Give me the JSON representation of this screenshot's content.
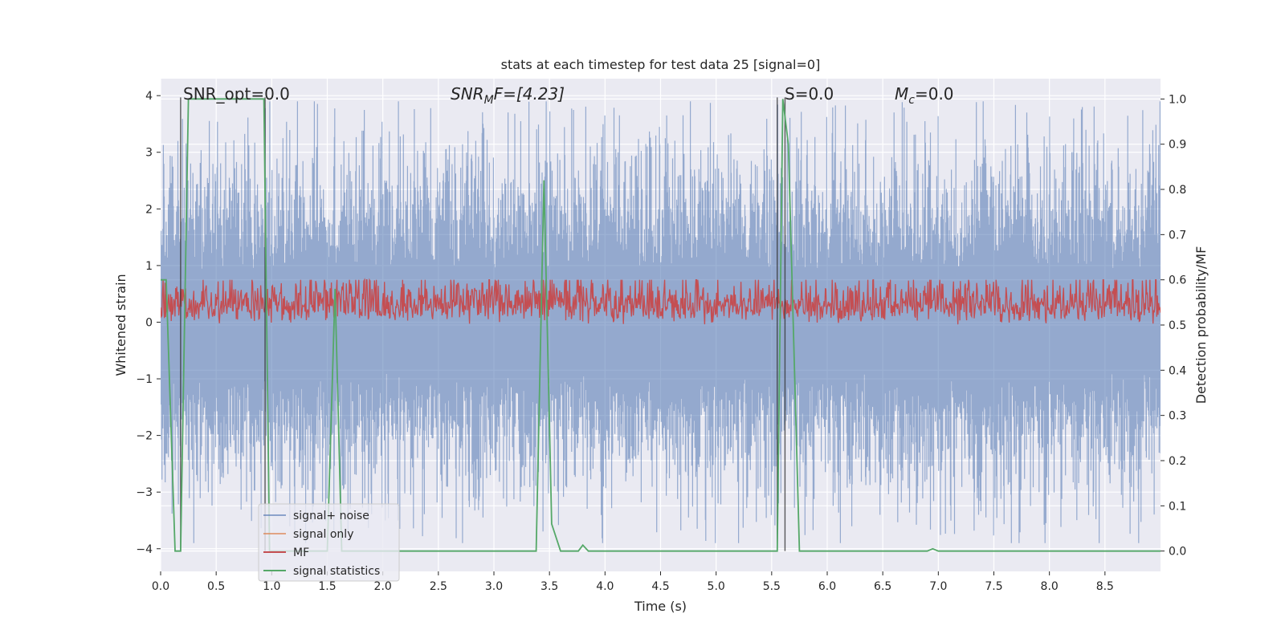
{
  "chart_data": {
    "type": "line",
    "title": "stats at each timestep for test data 25 [signal=0]",
    "xlabel": "Time (s)",
    "ylabel": "Whitened strain",
    "y2label": "Detection probability/MF",
    "xlim": [
      0.0,
      9.0
    ],
    "ylim": [
      -4.4,
      4.3
    ],
    "y2lim": [
      -0.045,
      1.045
    ],
    "x_ticks": [
      "0.0",
      "0.5",
      "1.0",
      "1.5",
      "2.0",
      "2.5",
      "3.0",
      "3.5",
      "4.0",
      "4.5",
      "5.0",
      "5.5",
      "6.0",
      "6.5",
      "7.0",
      "7.5",
      "8.0",
      "8.5"
    ],
    "x_tick_values": [
      0.0,
      0.5,
      1.0,
      1.5,
      2.0,
      2.5,
      3.0,
      3.5,
      4.0,
      4.5,
      5.0,
      5.5,
      6.0,
      6.5,
      7.0,
      7.5,
      8.0,
      8.5
    ],
    "y_ticks": [
      "−4",
      "−3",
      "−2",
      "−1",
      "0",
      "1",
      "2",
      "3",
      "4"
    ],
    "y_tick_values": [
      -4,
      -3,
      -2,
      -1,
      0,
      1,
      2,
      3,
      4
    ],
    "y2_ticks": [
      "0.0",
      "0.1",
      "0.2",
      "0.3",
      "0.4",
      "0.5",
      "0.6",
      "0.7",
      "0.8",
      "0.9",
      "1.0"
    ],
    "y2_tick_values": [
      0.0,
      0.1,
      0.2,
      0.3,
      0.4,
      0.5,
      0.6,
      0.7,
      0.8,
      0.9,
      1.0
    ],
    "grid": true,
    "legend_position": "lower-left",
    "annotations": {
      "snr_opt": "SNR_opt=0.0",
      "snr_mf_base": "SNR",
      "snr_mf_sub": "M",
      "snr_mf_rest": "F=[4.23]",
      "s_label": "S=0.0",
      "mc_base": "M",
      "mc_sub": "c",
      "mc_rest": "=0.0"
    },
    "series": [
      {
        "name": "signal+ noise",
        "color": "#4c72b0",
        "opacity": 0.5,
        "description": "whitened noise, amplitude mostly within ±2.5 with spikes to ±3.9",
        "envelope": {
          "typical_abs": 2.2,
          "peak_abs": 3.9
        }
      },
      {
        "name": "signal only",
        "color": "#dd8452",
        "values": []
      },
      {
        "name": "MF",
        "color": "#c44e52",
        "axis": "y2",
        "band": [
          0.5,
          0.6
        ]
      },
      {
        "name": "signal statistics",
        "color": "#55a868",
        "axis": "y2",
        "points": [
          [
            0.0,
            0.6
          ],
          [
            0.05,
            0.6
          ],
          [
            0.13,
            0.0
          ],
          [
            0.18,
            0.0
          ],
          [
            0.25,
            1.0
          ],
          [
            0.93,
            1.0
          ],
          [
            0.98,
            0.0
          ],
          [
            1.5,
            0.0
          ],
          [
            1.57,
            0.58
          ],
          [
            1.63,
            0.0
          ],
          [
            3.38,
            0.0
          ],
          [
            3.45,
            0.82
          ],
          [
            3.52,
            0.06
          ],
          [
            3.6,
            0.0
          ],
          [
            3.76,
            0.0
          ],
          [
            3.8,
            0.013
          ],
          [
            3.85,
            0.0
          ],
          [
            5.55,
            0.0
          ],
          [
            5.6,
            1.0
          ],
          [
            5.65,
            0.9
          ],
          [
            5.75,
            0.0
          ],
          [
            6.9,
            0.0
          ],
          [
            6.95,
            0.005
          ],
          [
            7.0,
            0.0
          ],
          [
            9.0,
            0.0
          ]
        ]
      }
    ],
    "vertical_markers": [
      0.18,
      0.94,
      5.55,
      5.62
    ]
  }
}
